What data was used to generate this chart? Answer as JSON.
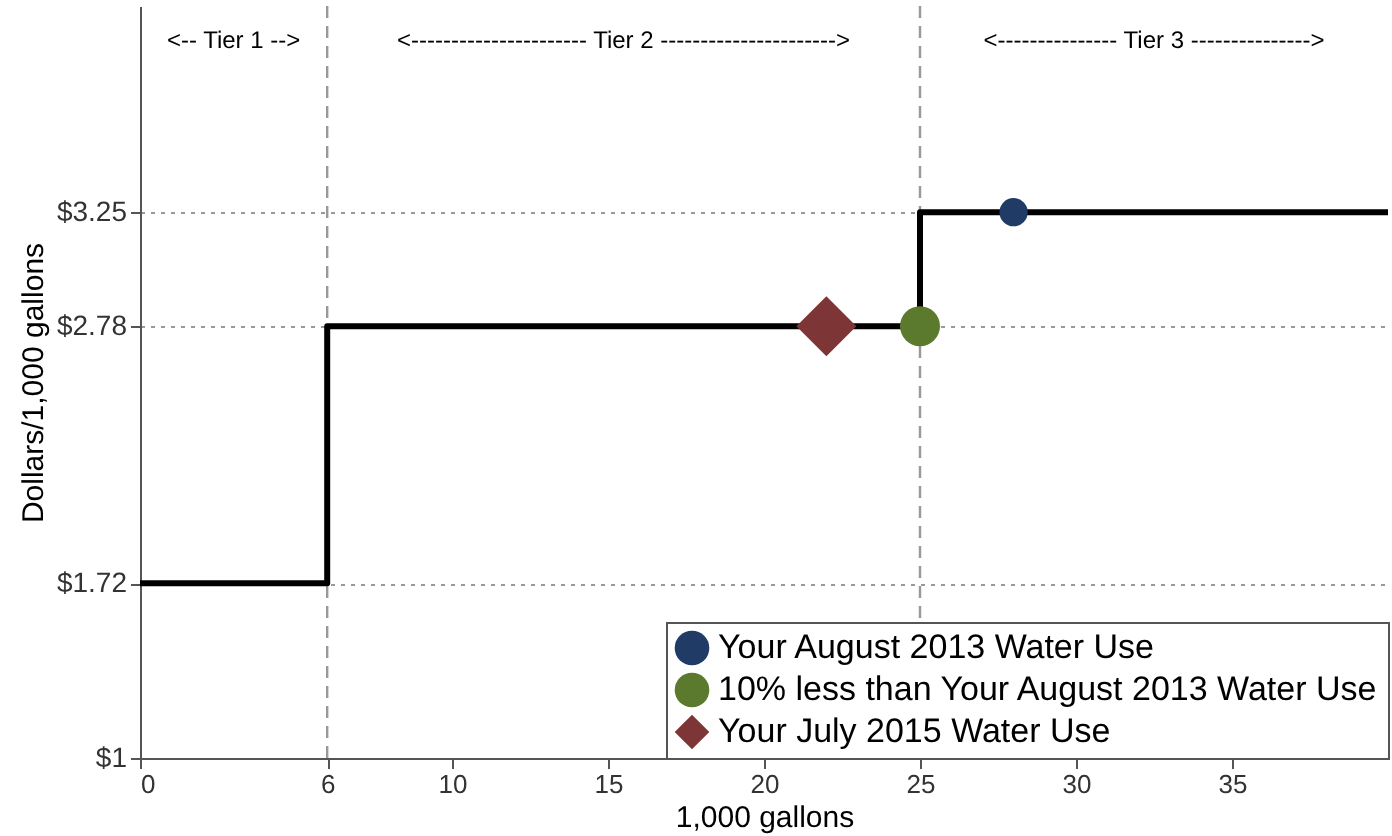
{
  "chart_data": {
    "type": "step",
    "xlabel": "1,000 gallons",
    "ylabel": "Dollars/1,000 gallons",
    "xlim": [
      0,
      40
    ],
    "ylim": [
      1,
      4.1
    ],
    "xticks": [
      0,
      6,
      10,
      15,
      20,
      25,
      30,
      35
    ],
    "yticks": [
      {
        "value": 1,
        "label": "$1"
      },
      {
        "value": 1.72,
        "label": "$1.72"
      },
      {
        "value": 2.78,
        "label": "$2.78"
      },
      {
        "value": 3.25,
        "label": "$3.25"
      }
    ],
    "grid": "y",
    "legend": "bottom right",
    "series": [
      {
        "type": "step",
        "color": "#000000",
        "x": [
          0,
          6,
          25,
          40
        ],
        "values": [
          1.72,
          2.78,
          3.25,
          3.25
        ]
      },
      {
        "type": "scatter",
        "name": "Your August 2013 Water Use",
        "color": "#1f3b66",
        "marker": "circle",
        "x": [
          28
        ],
        "values": [
          3.25
        ]
      },
      {
        "type": "scatter",
        "name": "10% less than Your August 2013 Water Use",
        "color": "#5b7a2e",
        "marker": "circle",
        "x": [
          25
        ],
        "values": [
          2.78
        ]
      },
      {
        "type": "scatter",
        "name": "Your July 2015 Water Use",
        "color": "#7e3535",
        "marker": "diamond",
        "x": [
          22
        ],
        "values": [
          2.78
        ]
      }
    ],
    "ref_lines": [
      {
        "axis": "x",
        "value": 6,
        "color": "#999999",
        "line_style": "dashed"
      },
      {
        "axis": "x",
        "value": 25,
        "color": "#999999",
        "line_style": "dashed"
      }
    ],
    "annotations": [
      "<-- Tier 1 -->",
      "<---------------------- Tier 2 ---------------------->",
      "<--------------- Tier 3 --------------->"
    ]
  }
}
